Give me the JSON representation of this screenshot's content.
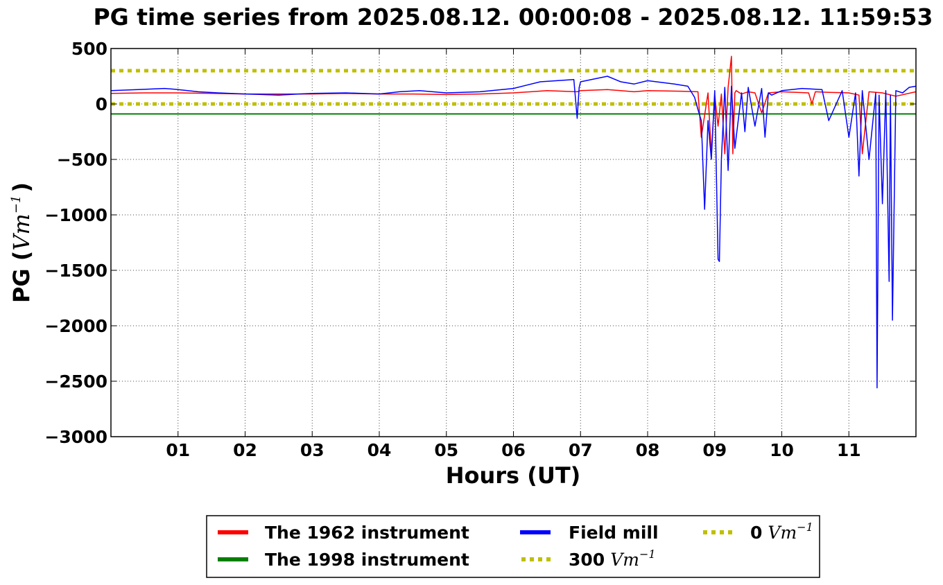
{
  "chart_data": {
    "type": "line",
    "title": "PG time series from 2025.08.12. 00:00:08 - 2025.08.12. 11:59:53",
    "xlabel": "Hours (UT)",
    "ylabel_prefix": "PG (",
    "ylabel_unit": "Vm",
    "ylabel_exp": "−1",
    "ylabel_suffix": ")",
    "xlim": [
      0,
      12
    ],
    "ylim": [
      -3000,
      500
    ],
    "grid": true,
    "legend_placement": "below",
    "x_ticks": [
      {
        "value": 1,
        "label": "01"
      },
      {
        "value": 2,
        "label": "02"
      },
      {
        "value": 3,
        "label": "03"
      },
      {
        "value": 4,
        "label": "04"
      },
      {
        "value": 5,
        "label": "05"
      },
      {
        "value": 6,
        "label": "06"
      },
      {
        "value": 7,
        "label": "07"
      },
      {
        "value": 8,
        "label": "08"
      },
      {
        "value": 9,
        "label": "09"
      },
      {
        "value": 10,
        "label": "10"
      },
      {
        "value": 11,
        "label": "11"
      }
    ],
    "y_ticks": [
      {
        "value": 500,
        "label": "500"
      },
      {
        "value": 0,
        "label": "0"
      },
      {
        "value": -500,
        "label": "−500"
      },
      {
        "value": -1000,
        "label": "−1000"
      },
      {
        "value": -1500,
        "label": "−1500"
      },
      {
        "value": -2000,
        "label": "−2000"
      },
      {
        "value": -2500,
        "label": "−2500"
      },
      {
        "value": -3000,
        "label": "−3000"
      }
    ],
    "series": [
      {
        "name": "The 1962 instrument",
        "color": "#ff0000",
        "style": "solid",
        "x": [
          0,
          0.5,
          1,
          1.5,
          2,
          2.5,
          3,
          3.5,
          4,
          4.5,
          5,
          5.5,
          6,
          6.5,
          6.95,
          7,
          7.4,
          7.8,
          8,
          8.5,
          8.75,
          8.8,
          8.9,
          8.95,
          9.0,
          9.05,
          9.1,
          9.15,
          9.2,
          9.25,
          9.27,
          9.3,
          9.32,
          9.4,
          9.5,
          9.6,
          9.7,
          9.8,
          10,
          10.4,
          10.45,
          10.5,
          10.7,
          11.0,
          11.15,
          11.2,
          11.3,
          11.5,
          11.7,
          12
        ],
        "y": [
          95,
          100,
          100,
          95,
          90,
          90,
          90,
          95,
          90,
          90,
          85,
          90,
          100,
          120,
          110,
          120,
          130,
          110,
          120,
          115,
          110,
          -300,
          100,
          -450,
          80,
          -200,
          90,
          -450,
          150,
          430,
          -450,
          100,
          120,
          90,
          110,
          100,
          -80,
          100,
          110,
          100,
          0,
          110,
          105,
          100,
          80,
          -450,
          110,
          100,
          70,
          110
        ]
      },
      {
        "name": "The 1998 instrument",
        "color": "#008000",
        "style": "solid",
        "x": [
          0,
          12
        ],
        "y": [
          -90,
          -90
        ]
      },
      {
        "name": "Field mill",
        "color": "#0000ff",
        "style": "solid",
        "x": [
          0,
          0.4,
          0.8,
          1,
          1.3,
          1.6,
          2,
          2.5,
          2.8,
          3,
          3.5,
          4,
          4.3,
          4.6,
          5,
          5.5,
          6,
          6.4,
          6.9,
          6.95,
          6.98,
          7,
          7.4,
          7.6,
          7.8,
          8,
          8.4,
          8.6,
          8.7,
          8.75,
          8.8,
          8.85,
          8.9,
          8.95,
          9.0,
          9.05,
          9.07,
          9.1,
          9.15,
          9.2,
          9.25,
          9.3,
          9.4,
          9.45,
          9.5,
          9.6,
          9.7,
          9.75,
          9.8,
          9.85,
          10,
          10.3,
          10.6,
          10.7,
          10.9,
          11.0,
          11.1,
          11.15,
          11.2,
          11.3,
          11.4,
          11.42,
          11.45,
          11.5,
          11.55,
          11.6,
          11.62,
          11.65,
          11.7,
          11.8,
          11.9,
          12
        ],
        "y": [
          120,
          130,
          140,
          130,
          110,
          100,
          90,
          80,
          90,
          95,
          100,
          90,
          110,
          120,
          100,
          110,
          140,
          200,
          220,
          -130,
          150,
          200,
          250,
          200,
          180,
          210,
          180,
          160,
          60,
          -50,
          -150,
          -950,
          -150,
          -500,
          120,
          -1400,
          -1420,
          -500,
          150,
          -600,
          160,
          -400,
          100,
          -250,
          150,
          -200,
          140,
          -300,
          100,
          80,
          120,
          140,
          130,
          -150,
          120,
          -300,
          100,
          -650,
          120,
          -500,
          100,
          -2560,
          80,
          -900,
          120,
          -1600,
          80,
          -1950,
          120,
          100,
          150,
          160
        ]
      },
      {
        "name": "300 Vm−1",
        "label_number": "300",
        "label_unit": "Vm",
        "label_exp": "−1",
        "color": "#bfbf00",
        "style": "dotted",
        "x": [
          0,
          12
        ],
        "y": [
          300,
          300
        ]
      },
      {
        "name": "0 Vm−1",
        "label_number": "0",
        "label_unit": "Vm",
        "label_exp": "−1",
        "color": "#bfbf00",
        "style": "dotted",
        "x": [
          0,
          12
        ],
        "y": [
          0,
          0
        ]
      }
    ]
  }
}
